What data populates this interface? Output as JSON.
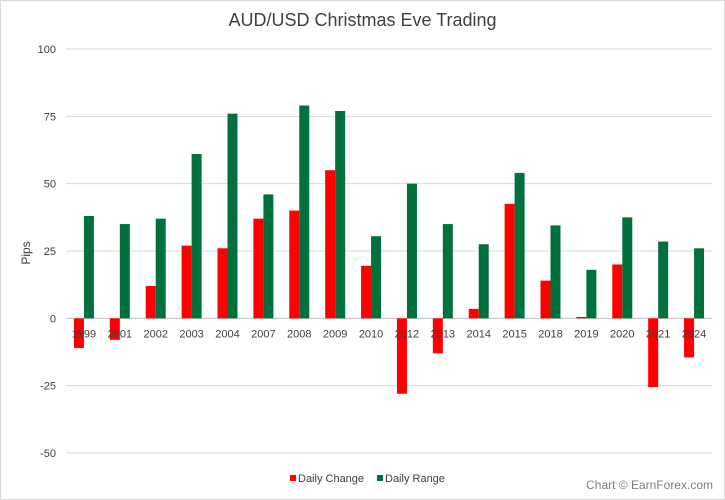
{
  "chart_data": {
    "type": "bar",
    "title": "AUD/USD Christmas Eve Trading",
    "xlabel": "",
    "ylabel": "Pips",
    "ylim": [
      -50,
      100
    ],
    "yticks": [
      -50,
      -25,
      0,
      25,
      50,
      75,
      100
    ],
    "grid": true,
    "legend_position": "bottom",
    "categories": [
      "1999",
      "2001",
      "2002",
      "2003",
      "2004",
      "2007",
      "2008",
      "2009",
      "2010",
      "2012",
      "2013",
      "2014",
      "2015",
      "2018",
      "2019",
      "2020",
      "2021",
      "2024"
    ],
    "series": [
      {
        "name": "Daily Change",
        "color": "#ff0000",
        "values": [
          -11,
          -8,
          12,
          27,
          26,
          37,
          40,
          55,
          19.5,
          -28,
          -13,
          3.5,
          42.5,
          14,
          0.5,
          20,
          -25.5,
          -14.5
        ]
      },
      {
        "name": "Daily Range",
        "color": "#00703c",
        "values": [
          38,
          35,
          37,
          61,
          76,
          46,
          79,
          77,
          30.5,
          50,
          35,
          27.5,
          54,
          34.5,
          18,
          37.5,
          28.5,
          26
        ]
      }
    ]
  },
  "credit": "Chart © EarnForex.com"
}
